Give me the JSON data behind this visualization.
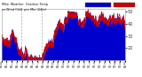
{
  "bg_color": "#ffffff",
  "plot_bg": "#ffffff",
  "temp_color": "#0000cc",
  "windchill_color": "#cc0000",
  "vline_color": "#888888",
  "ylim": [
    10,
    52
  ],
  "xlim": [
    0,
    1440
  ],
  "yticks": [
    20,
    30,
    40,
    50
  ],
  "vlines": [
    230,
    470
  ],
  "n_points": 1440,
  "seed": 99
}
